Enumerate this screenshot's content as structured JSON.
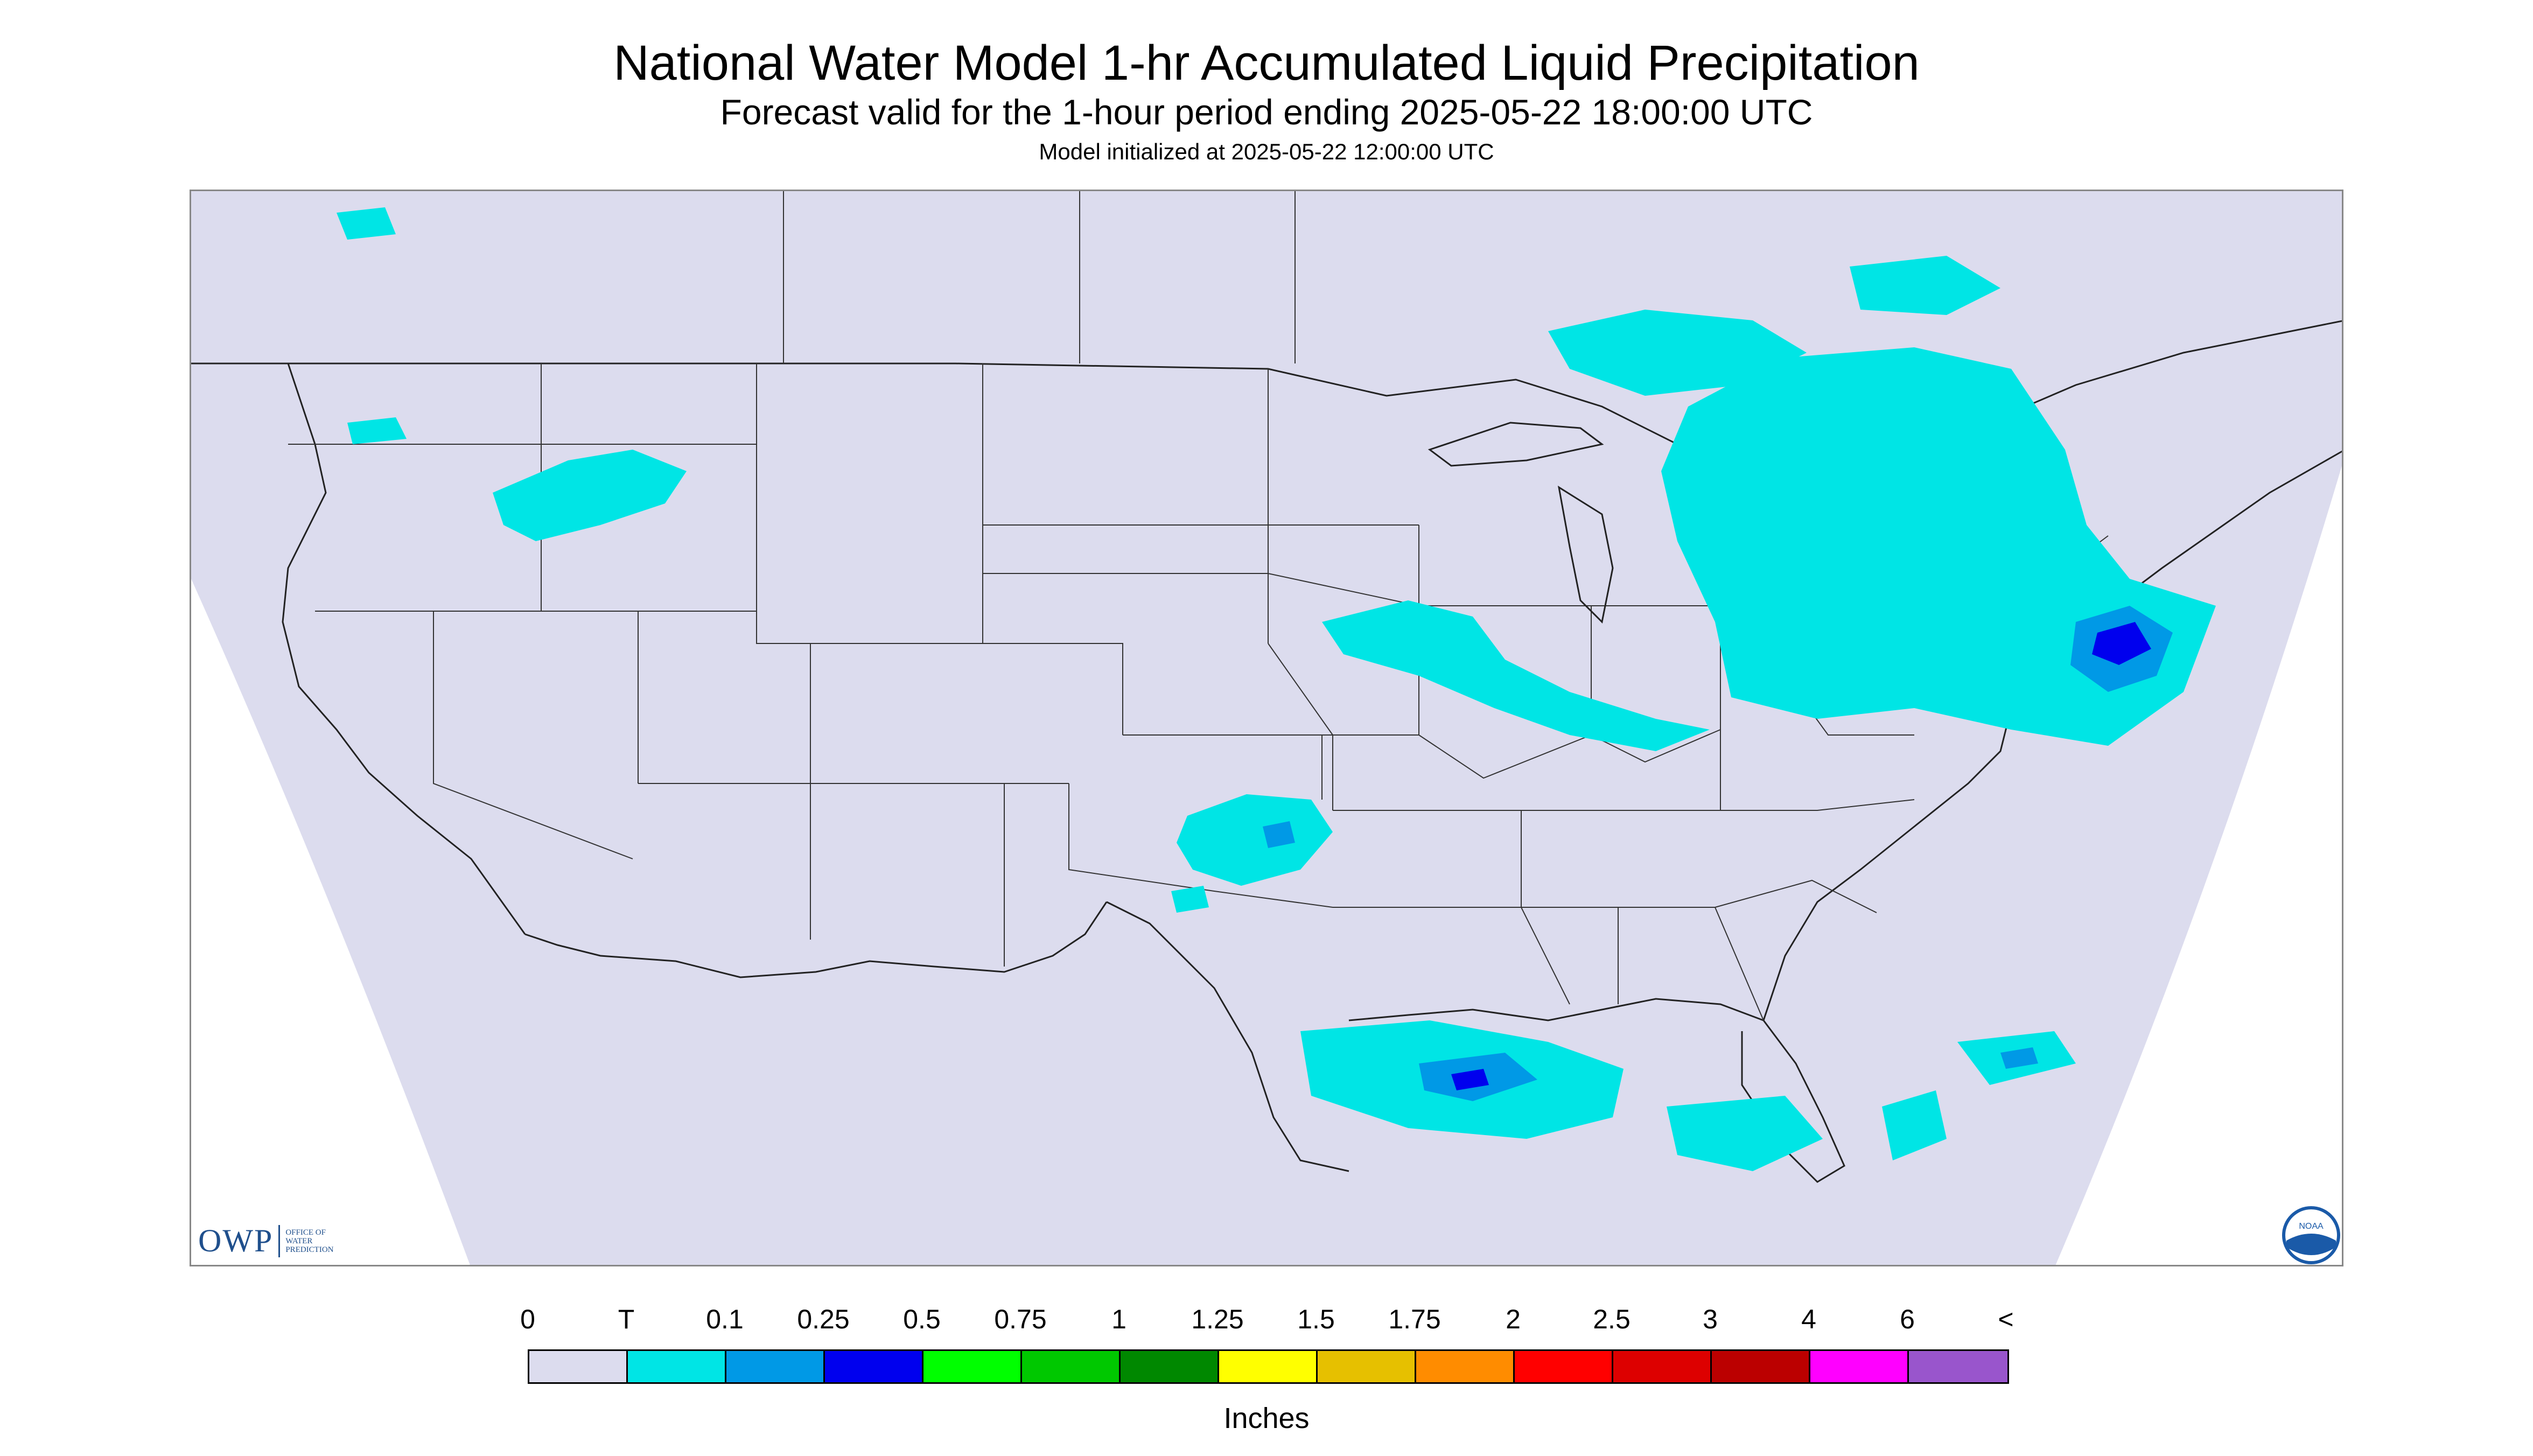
{
  "title": "National Water Model 1-hr Accumulated Liquid Precipitation",
  "subtitle": "Forecast valid for the 1-hour period ending 2025-05-22 18:00:00 UTC",
  "init_text": "Model initialized at 2025-05-22 12:00:00 UTC",
  "logo": {
    "owp_main": "OWP",
    "owp_sub_lines": [
      "OFFICE OF",
      "WATER",
      "PREDICTION"
    ],
    "noaa_text": "NOAA"
  },
  "legend": {
    "labels": [
      "0",
      "T",
      "0.1",
      "0.25",
      "0.5",
      "0.75",
      "1",
      "1.25",
      "1.5",
      "1.75",
      "2",
      "2.5",
      "3",
      "4",
      "6",
      "<"
    ],
    "colors": [
      "#dcdcee",
      "#00e5e5",
      "#0099e6",
      "#0000ee",
      "#00ff00",
      "#00c800",
      "#008800",
      "#ffff00",
      "#e6c000",
      "#ff8c00",
      "#ff0000",
      "#dd0000",
      "#bb0000",
      "#ff00ff",
      "#9955cc"
    ],
    "units": "Inches"
  },
  "colors": {
    "map_background": "#dcdcee",
    "outside_domain": "#ffffff",
    "borders": "#333333"
  }
}
